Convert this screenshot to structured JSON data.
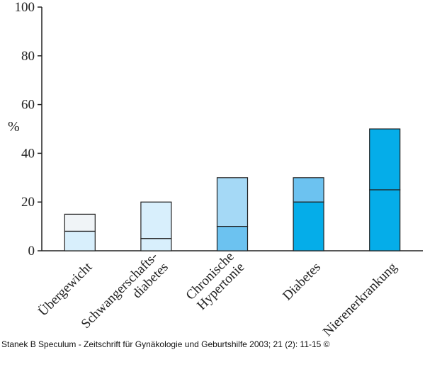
{
  "chart_data": {
    "type": "bar",
    "stacked": true,
    "ylabel": "%",
    "ylim": [
      0,
      100
    ],
    "yticks": [
      0,
      20,
      40,
      60,
      80,
      100
    ],
    "grid": false,
    "categories": [
      [
        "Übergewicht"
      ],
      [
        "Schwangerschafts-",
        "diabetes"
      ],
      [
        "Chronische",
        "Hypertonie"
      ],
      [
        "Diabetes"
      ],
      [
        "Nierenerkrankung"
      ]
    ],
    "lower_values": [
      8,
      5,
      10,
      20,
      25
    ],
    "total_values": [
      15,
      20,
      30,
      30,
      50
    ],
    "lower_colors": [
      "#d8effc",
      "#d8effc",
      "#6cc2f0",
      "#05ade9",
      "#05ade9"
    ],
    "upper_colors": [
      "#f0f4f7",
      "#d8effc",
      "#a5d9f6",
      "#6cc2f0",
      "#05ade9"
    ]
  },
  "caption": "Stanek B Speculum - Zeitschrift für Gynäkologie und Geburtshilfe 2003; 21 (2): 11-15 ©"
}
